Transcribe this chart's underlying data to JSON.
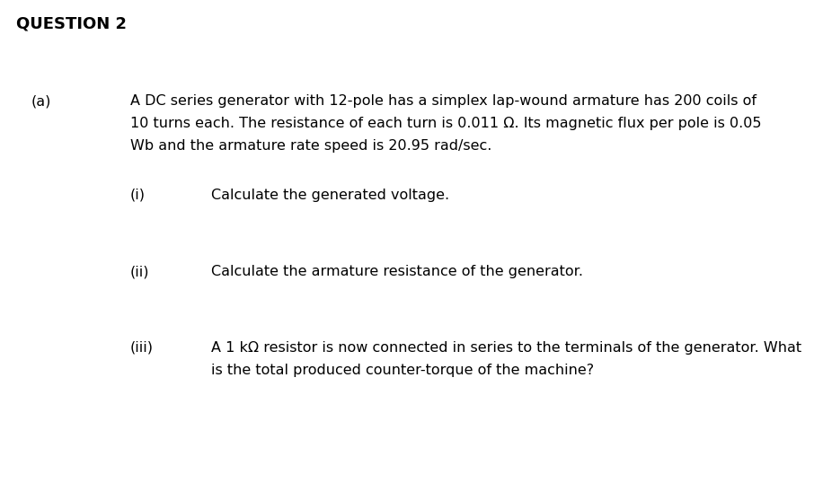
{
  "background_color": "#ffffff",
  "title": "QUESTION 2",
  "title_fontsize": 13,
  "title_fontweight": "bold",
  "part_a_label": "(a)",
  "body_fontsize": 11.5,
  "line1": "A DC series generator with 12-pole has a simplex lap-wound armature has 200 coils of",
  "line2": "10 turns each. The resistance of each turn is 0.011 Ω. Its magnetic flux per pole is 0.05",
  "line3": "Wb and the armature rate speed is 20.95 rad/sec.",
  "sub_i_label": "(i)",
  "sub_i_text": "Calculate the generated voltage.",
  "sub_ii_label": "(ii)",
  "sub_ii_text": "Calculate the armature resistance of the generator.",
  "sub_iii_label": "(iii)",
  "sub_iii_text": "A 1 kΩ resistor is now connected in series to the terminals of the generator. What",
  "sub_iii_text2": "is the total produced counter-torque of the machine?"
}
